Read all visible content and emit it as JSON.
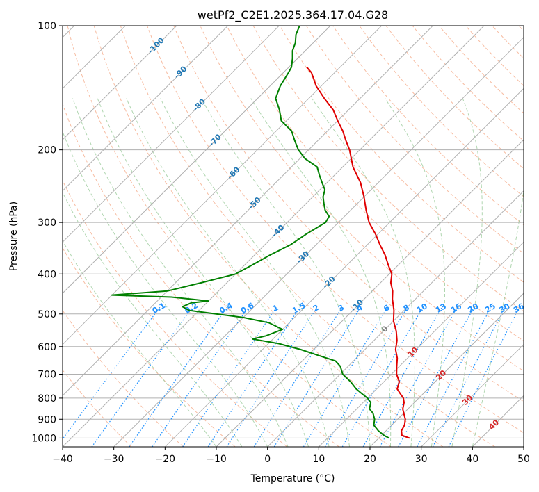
{
  "chart_data": {
    "type": "line",
    "title": "wetPf2_C2E1.2025.364.17.04.G28",
    "xlabel": "Temperature (°C)",
    "ylabel": "Pressure (hPa)",
    "xlim": [
      -40,
      50
    ],
    "ylim": [
      1050,
      100
    ],
    "x_ticks": [
      -40,
      -30,
      -20,
      -10,
      0,
      10,
      20,
      30,
      40,
      50
    ],
    "x_tick_labels": [
      "−40",
      "−30",
      "−20",
      "−10",
      "0",
      "10",
      "20",
      "30",
      "40",
      "50"
    ],
    "y_ticks": [
      1000,
      900,
      800,
      700,
      600,
      500,
      400,
      300,
      200,
      100
    ],
    "y_tick_labels": [
      "1000",
      "900",
      "800",
      "700",
      "600",
      "500",
      "400",
      "300",
      "200",
      "100"
    ],
    "isotherm_labels": [
      {
        "text": "-100",
        "value": -100,
        "p": 112
      },
      {
        "text": "-90",
        "value": -90,
        "p": 130
      },
      {
        "text": "-80",
        "value": -80,
        "p": 156
      },
      {
        "text": "-70",
        "value": -70,
        "p": 190
      },
      {
        "text": "-60",
        "value": -60,
        "p": 228
      },
      {
        "text": "-50",
        "value": -50,
        "p": 270
      },
      {
        "text": "-40",
        "value": -40,
        "p": 315
      },
      {
        "text": "-30",
        "value": -30,
        "p": 365
      },
      {
        "text": "-20",
        "value": -20,
        "p": 420
      },
      {
        "text": "-10",
        "value": -10,
        "p": 478
      },
      {
        "text": "0",
        "value": 0,
        "p": 545
      },
      {
        "text": "10",
        "value": 10,
        "p": 620
      },
      {
        "text": "20",
        "value": 20,
        "p": 705
      },
      {
        "text": "30",
        "value": 30,
        "p": 810
      },
      {
        "text": "40",
        "value": 40,
        "p": 930
      }
    ],
    "mixing_ratio_labels": [
      "0.1",
      "0.2",
      "0.4",
      "0.6",
      "1",
      "1.5",
      "2",
      "3",
      "4",
      "6",
      "8",
      "10",
      "13",
      "16",
      "20",
      "25",
      "30",
      "36"
    ],
    "mixing_ratio_values": [
      0.1,
      0.2,
      0.4,
      0.6,
      1,
      1.5,
      2,
      3,
      4,
      6,
      8,
      10,
      13,
      16,
      20,
      25,
      30,
      36
    ],
    "mixing_ratio_label_p": 485,
    "series": [
      {
        "name": "Temperature",
        "color": "#e00000",
        "p": [
          1000,
          985,
          960,
          930,
          900,
          870,
          850,
          820,
          800,
          780,
          760,
          730,
          700,
          670,
          640,
          610,
          580,
          550,
          520,
          490,
          460,
          440,
          420,
          400,
          380,
          360,
          340,
          320,
          300,
          280,
          260,
          240,
          220,
          200,
          190,
          180,
          170,
          160,
          150,
          140,
          130,
          126
        ],
        "t": [
          26,
          24,
          23,
          22.5,
          21.5,
          20,
          19,
          18,
          17,
          15.5,
          14,
          13,
          11,
          9.5,
          8,
          6,
          4.5,
          2.5,
          0,
          -2,
          -4.5,
          -6,
          -8,
          -9.5,
          -12,
          -14.5,
          -17.5,
          -20.5,
          -24,
          -27,
          -30,
          -33.5,
          -38,
          -42,
          -44.5,
          -47,
          -50,
          -53,
          -57,
          -61,
          -64.5,
          -66.5
        ]
      },
      {
        "name": "Dewpoint",
        "color": "#008000",
        "p": [
          1000,
          985,
          960,
          930,
          900,
          870,
          850,
          820,
          800,
          780,
          760,
          730,
          700,
          670,
          650,
          630,
          610,
          590,
          575,
          565,
          545,
          525,
          510,
          500,
          490,
          480,
          470,
          465,
          455,
          450,
          440,
          420,
          400,
          380,
          360,
          340,
          320,
          300,
          290,
          280,
          270,
          260,
          250,
          240,
          230,
          220,
          210,
          200,
          190,
          180,
          170,
          160,
          150,
          140,
          130,
          126,
          120,
          115,
          110,
          105,
          100
        ],
        "t": [
          22,
          20.5,
          18.5,
          16.5,
          15.5,
          14,
          12.5,
          11.5,
          10,
          8,
          6,
          3.5,
          0.5,
          -1.5,
          -3.5,
          -8,
          -12.5,
          -18,
          -24,
          -22,
          -20,
          -24,
          -30,
          -36,
          -42,
          -44,
          -43,
          -40,
          -48,
          -60,
          -50,
          -45,
          -40,
          -38.5,
          -37,
          -35,
          -34,
          -32.5,
          -33,
          -35,
          -36.5,
          -38,
          -39,
          -41,
          -43,
          -45,
          -49,
          -52,
          -54.5,
          -57,
          -61,
          -63.5,
          -66.5,
          -68,
          -69,
          -69.5,
          -71,
          -72.5,
          -73.5,
          -75,
          -76
        ]
      }
    ]
  },
  "colors": {
    "isotherm_label": "#1f77b4",
    "isotherm_label_warm": "#d62728",
    "isotherm_zero": "#7f7f7f",
    "mixing_ratio_label": "#1e90ff",
    "dry_adiabat": "#f4a582",
    "moist_adiabat": "#9ccc9c",
    "grid": "#b0b0b0"
  }
}
